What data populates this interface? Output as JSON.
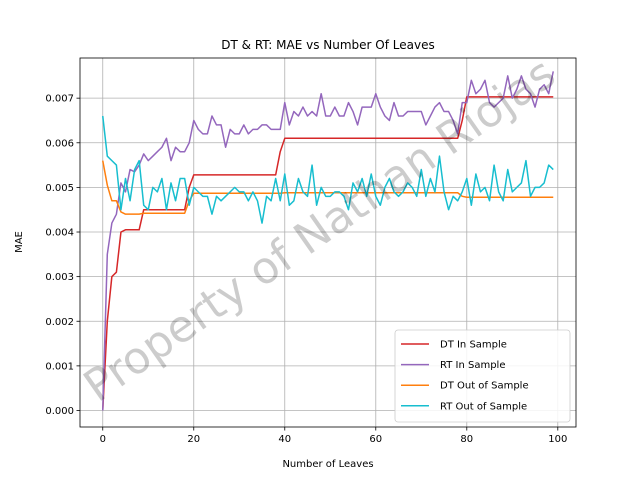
{
  "chart_data": {
    "type": "line",
    "title": "DT & RT: MAE vs Number Of Leaves",
    "xlabel": "Number of Leaves",
    "ylabel": "MAE",
    "xlim": [
      -5,
      104
    ],
    "ylim": [
      -0.00037,
      0.0079
    ],
    "x_ticks": [
      0,
      20,
      40,
      60,
      80,
      100
    ],
    "y_ticks": [
      0.0,
      0.001,
      0.002,
      0.003,
      0.004,
      0.005,
      0.006,
      0.007
    ],
    "x_tick_labels": [
      "0",
      "20",
      "40",
      "60",
      "80",
      "100"
    ],
    "y_tick_labels": [
      "0.000",
      "0.001",
      "0.002",
      "0.003",
      "0.004",
      "0.005",
      "0.006",
      "0.007"
    ],
    "grid": true,
    "legend_position": "bottom-right",
    "watermark": "Property of Nathan Riojas",
    "x": [
      0,
      1,
      2,
      3,
      4,
      5,
      6,
      7,
      8,
      9,
      10,
      11,
      12,
      13,
      14,
      15,
      16,
      17,
      18,
      19,
      20,
      21,
      22,
      23,
      24,
      25,
      26,
      27,
      28,
      29,
      30,
      31,
      32,
      33,
      34,
      35,
      36,
      37,
      38,
      39,
      40,
      41,
      42,
      43,
      44,
      45,
      46,
      47,
      48,
      49,
      50,
      51,
      52,
      53,
      54,
      55,
      56,
      57,
      58,
      59,
      60,
      61,
      62,
      63,
      64,
      65,
      66,
      67,
      68,
      69,
      70,
      71,
      72,
      73,
      74,
      75,
      76,
      77,
      78,
      79,
      80,
      81,
      82,
      83,
      84,
      85,
      86,
      87,
      88,
      89,
      90,
      91,
      92,
      93,
      94,
      95,
      96,
      97,
      98,
      99
    ],
    "series": [
      {
        "name": "DT In Sample",
        "color": "#d62728",
        "values": [
          0.0,
          0.002,
          0.003,
          0.0031,
          0.004,
          0.00405,
          0.00405,
          0.00405,
          0.00405,
          0.0045,
          0.0045,
          0.0045,
          0.0045,
          0.0045,
          0.0045,
          0.0045,
          0.0045,
          0.0045,
          0.0045,
          0.005,
          0.00528,
          0.00528,
          0.00528,
          0.00528,
          0.00528,
          0.00528,
          0.00528,
          0.00528,
          0.00528,
          0.00528,
          0.00528,
          0.00528,
          0.00528,
          0.00528,
          0.00528,
          0.00528,
          0.00528,
          0.00528,
          0.00528,
          0.0058,
          0.0061,
          0.0061,
          0.0061,
          0.0061,
          0.0061,
          0.0061,
          0.0061,
          0.0061,
          0.0061,
          0.0061,
          0.0061,
          0.0061,
          0.0061,
          0.0061,
          0.0061,
          0.0061,
          0.0061,
          0.0061,
          0.0061,
          0.0061,
          0.0061,
          0.0061,
          0.0061,
          0.0061,
          0.0061,
          0.0061,
          0.0061,
          0.0061,
          0.0061,
          0.0061,
          0.0061,
          0.0061,
          0.0061,
          0.0061,
          0.0061,
          0.0061,
          0.0061,
          0.0061,
          0.0061,
          0.0065,
          0.00703,
          0.00703,
          0.00703,
          0.00703,
          0.00703,
          0.00703,
          0.00703,
          0.00703,
          0.00703,
          0.00703,
          0.00703,
          0.00703,
          0.00703,
          0.00703,
          0.00703,
          0.00703,
          0.00703,
          0.00703,
          0.00703,
          0.00703
        ]
      },
      {
        "name": "RT In Sample",
        "color": "#9467bd",
        "values": [
          0.0,
          0.0035,
          0.0042,
          0.0044,
          0.0051,
          0.0049,
          0.0054,
          0.00535,
          0.0055,
          0.00575,
          0.0056,
          0.0057,
          0.0058,
          0.0059,
          0.0061,
          0.0056,
          0.0059,
          0.0058,
          0.0058,
          0.006,
          0.0065,
          0.0063,
          0.0062,
          0.0062,
          0.0066,
          0.0064,
          0.0064,
          0.0059,
          0.0063,
          0.0062,
          0.0062,
          0.0064,
          0.0062,
          0.0063,
          0.0063,
          0.0064,
          0.0064,
          0.0063,
          0.0063,
          0.0063,
          0.0069,
          0.0064,
          0.0067,
          0.0066,
          0.0068,
          0.0066,
          0.0067,
          0.0066,
          0.0071,
          0.0066,
          0.0066,
          0.0068,
          0.0066,
          0.0066,
          0.0069,
          0.0067,
          0.0064,
          0.0068,
          0.0068,
          0.0068,
          0.0071,
          0.0068,
          0.0066,
          0.0065,
          0.0069,
          0.0066,
          0.0066,
          0.0067,
          0.0067,
          0.0067,
          0.0067,
          0.0064,
          0.0066,
          0.0068,
          0.0069,
          0.0067,
          0.0067,
          0.0065,
          0.0062,
          0.0069,
          0.0069,
          0.0074,
          0.0071,
          0.0072,
          0.0074,
          0.0069,
          0.0068,
          0.0069,
          0.007,
          0.0075,
          0.007,
          0.0072,
          0.0075,
          0.0072,
          0.0071,
          0.0068,
          0.0072,
          0.0073,
          0.0071,
          0.0076
        ]
      },
      {
        "name": "DT Out of Sample",
        "color": "#ff7f0e",
        "values": [
          0.0056,
          0.00505,
          0.0047,
          0.0047,
          0.00445,
          0.0044,
          0.0044,
          0.0044,
          0.0044,
          0.00442,
          0.00442,
          0.00442,
          0.00442,
          0.00442,
          0.00442,
          0.00442,
          0.00442,
          0.00442,
          0.00442,
          0.0047,
          0.00487,
          0.00487,
          0.00487,
          0.00487,
          0.00487,
          0.00487,
          0.00487,
          0.00487,
          0.00487,
          0.00487,
          0.00487,
          0.00487,
          0.00487,
          0.00487,
          0.00487,
          0.00487,
          0.00487,
          0.00487,
          0.00487,
          0.00487,
          0.00488,
          0.00488,
          0.00488,
          0.00488,
          0.00488,
          0.00488,
          0.00488,
          0.00488,
          0.00488,
          0.00488,
          0.00488,
          0.00488,
          0.00488,
          0.00488,
          0.00488,
          0.00488,
          0.00488,
          0.00488,
          0.00488,
          0.00488,
          0.00488,
          0.00488,
          0.00488,
          0.00488,
          0.00488,
          0.00488,
          0.00488,
          0.00488,
          0.00488,
          0.00488,
          0.00488,
          0.00488,
          0.00488,
          0.00488,
          0.00488,
          0.00488,
          0.00488,
          0.00488,
          0.00488,
          0.0048,
          0.00478,
          0.00478,
          0.00478,
          0.00478,
          0.00478,
          0.00478,
          0.00478,
          0.00478,
          0.00478,
          0.00478,
          0.00478,
          0.00478,
          0.00478,
          0.00478,
          0.00478,
          0.00478,
          0.00478,
          0.00478,
          0.00478,
          0.00478
        ]
      },
      {
        "name": "RT Out of Sample",
        "color": "#17becf",
        "values": [
          0.0066,
          0.0057,
          0.0056,
          0.0055,
          0.0045,
          0.0052,
          0.0047,
          0.0054,
          0.0056,
          0.0046,
          0.0045,
          0.005,
          0.0049,
          0.0052,
          0.0045,
          0.0051,
          0.0047,
          0.0052,
          0.0052,
          0.0046,
          0.005,
          0.0049,
          0.0048,
          0.0048,
          0.0044,
          0.0048,
          0.0047,
          0.0048,
          0.0049,
          0.005,
          0.0049,
          0.0049,
          0.0047,
          0.0049,
          0.0047,
          0.0042,
          0.0048,
          0.0047,
          0.0052,
          0.0047,
          0.0053,
          0.0046,
          0.0047,
          0.0052,
          0.0049,
          0.0048,
          0.0055,
          0.0046,
          0.005,
          0.0048,
          0.0048,
          0.0049,
          0.0049,
          0.0048,
          0.0045,
          0.0051,
          0.0049,
          0.0052,
          0.0048,
          0.0053,
          0.0048,
          0.0046,
          0.005,
          0.0052,
          0.0049,
          0.0048,
          0.0049,
          0.0051,
          0.005,
          0.0048,
          0.0054,
          0.0048,
          0.0052,
          0.0049,
          0.0057,
          0.0049,
          0.0045,
          0.0048,
          0.0047,
          0.0049,
          0.0052,
          0.0046,
          0.0053,
          0.0049,
          0.005,
          0.0047,
          0.0055,
          0.0049,
          0.0047,
          0.0054,
          0.0049,
          0.005,
          0.0051,
          0.0056,
          0.0048,
          0.005,
          0.005,
          0.0051,
          0.0055,
          0.0054
        ]
      }
    ]
  }
}
